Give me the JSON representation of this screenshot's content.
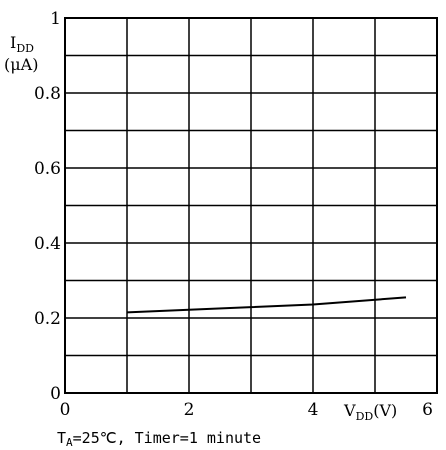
{
  "chart_data": {
    "type": "line",
    "x": [
      1,
      2,
      3,
      4,
      5.5
    ],
    "series": [
      {
        "values": [
          0.215,
          0.222,
          0.229,
          0.236,
          0.255
        ]
      }
    ],
    "xlim": [
      0,
      6
    ],
    "ylim": [
      0,
      1
    ],
    "xticks": [
      "0",
      "2",
      "4",
      "6"
    ],
    "yticks": [
      "0",
      "0.2",
      "0.4",
      "0.6",
      "0.8",
      "1"
    ],
    "ylabel_main": "I",
    "ylabel_sub": "DD",
    "ylabel_unit": "(μA)",
    "xlabel_main": "V",
    "xlabel_sub": "DD",
    "xlabel_unit": "(V)",
    "caption_main": "T",
    "caption_sub": "A",
    "caption_rest": "=25℃, Timer=1 minute",
    "grid": true,
    "line_color": "#000000"
  }
}
